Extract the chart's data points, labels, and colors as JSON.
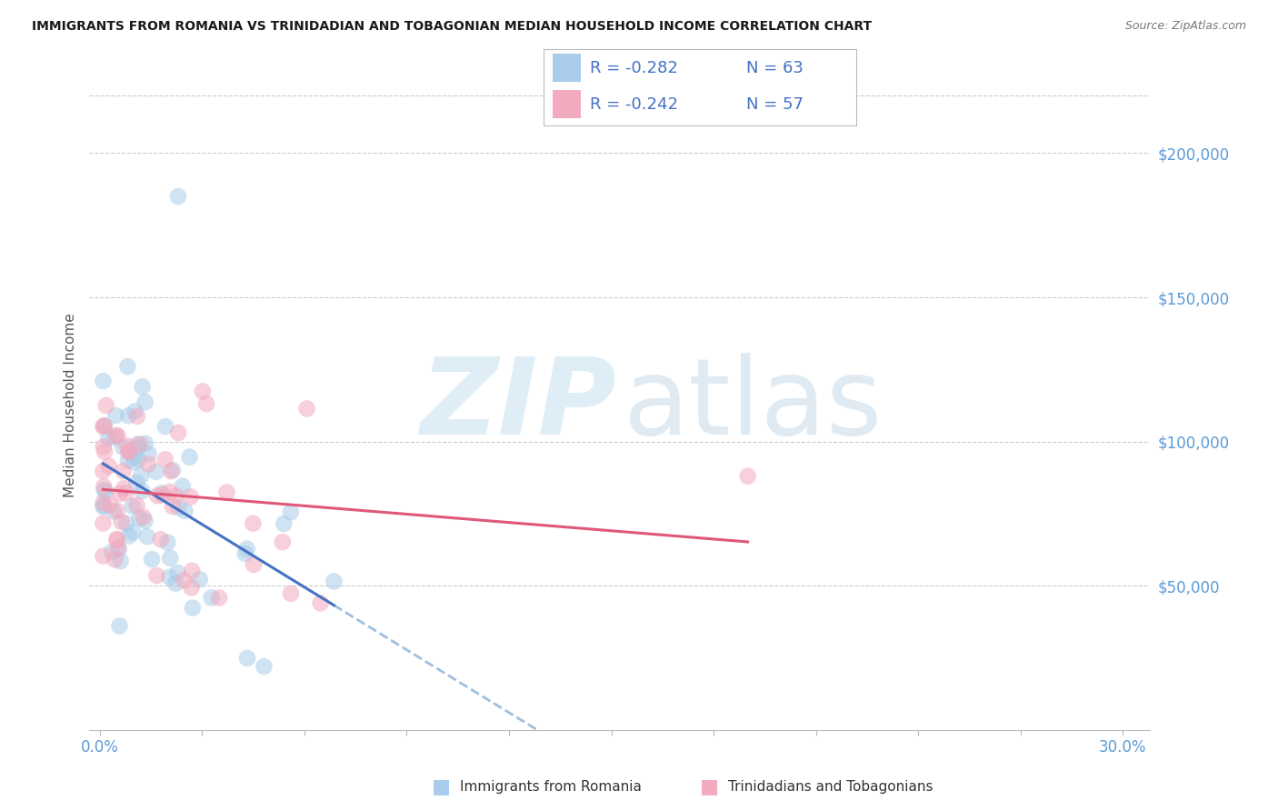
{
  "title": "IMMIGRANTS FROM ROMANIA VS TRINIDADIAN AND TOBAGONIAN MEDIAN HOUSEHOLD INCOME CORRELATION CHART",
  "source": "Source: ZipAtlas.com",
  "ylabel": "Median Household Income",
  "y_ticks": [
    50000,
    100000,
    150000,
    200000
  ],
  "y_tick_labels": [
    "$50,000",
    "$100,000",
    "$150,000",
    "$200,000"
  ],
  "xlim": [
    -0.003,
    0.308
  ],
  "ylim": [
    0,
    225000
  ],
  "legend_label1": "Immigrants from Romania",
  "legend_label2": "Trinidadians and Tobagonians",
  "romania_color": "#A8CCEA",
  "trinidad_color": "#F2AABE",
  "trendline_romania_color": "#4472C4",
  "trendline_trinidad_color": "#E05878",
  "trendline_dashed_color": "#A0BEDD",
  "romania_R": -0.282,
  "trinidad_R": -0.242,
  "romania_N": 63,
  "trinidad_N": 57,
  "legend_text_color": "#4472C4",
  "tick_color": "#5B9BD5",
  "grid_color": "#CCCCCC",
  "title_color": "#1a1a1a",
  "source_color": "#777777",
  "watermark_color": "#D5E8F5"
}
